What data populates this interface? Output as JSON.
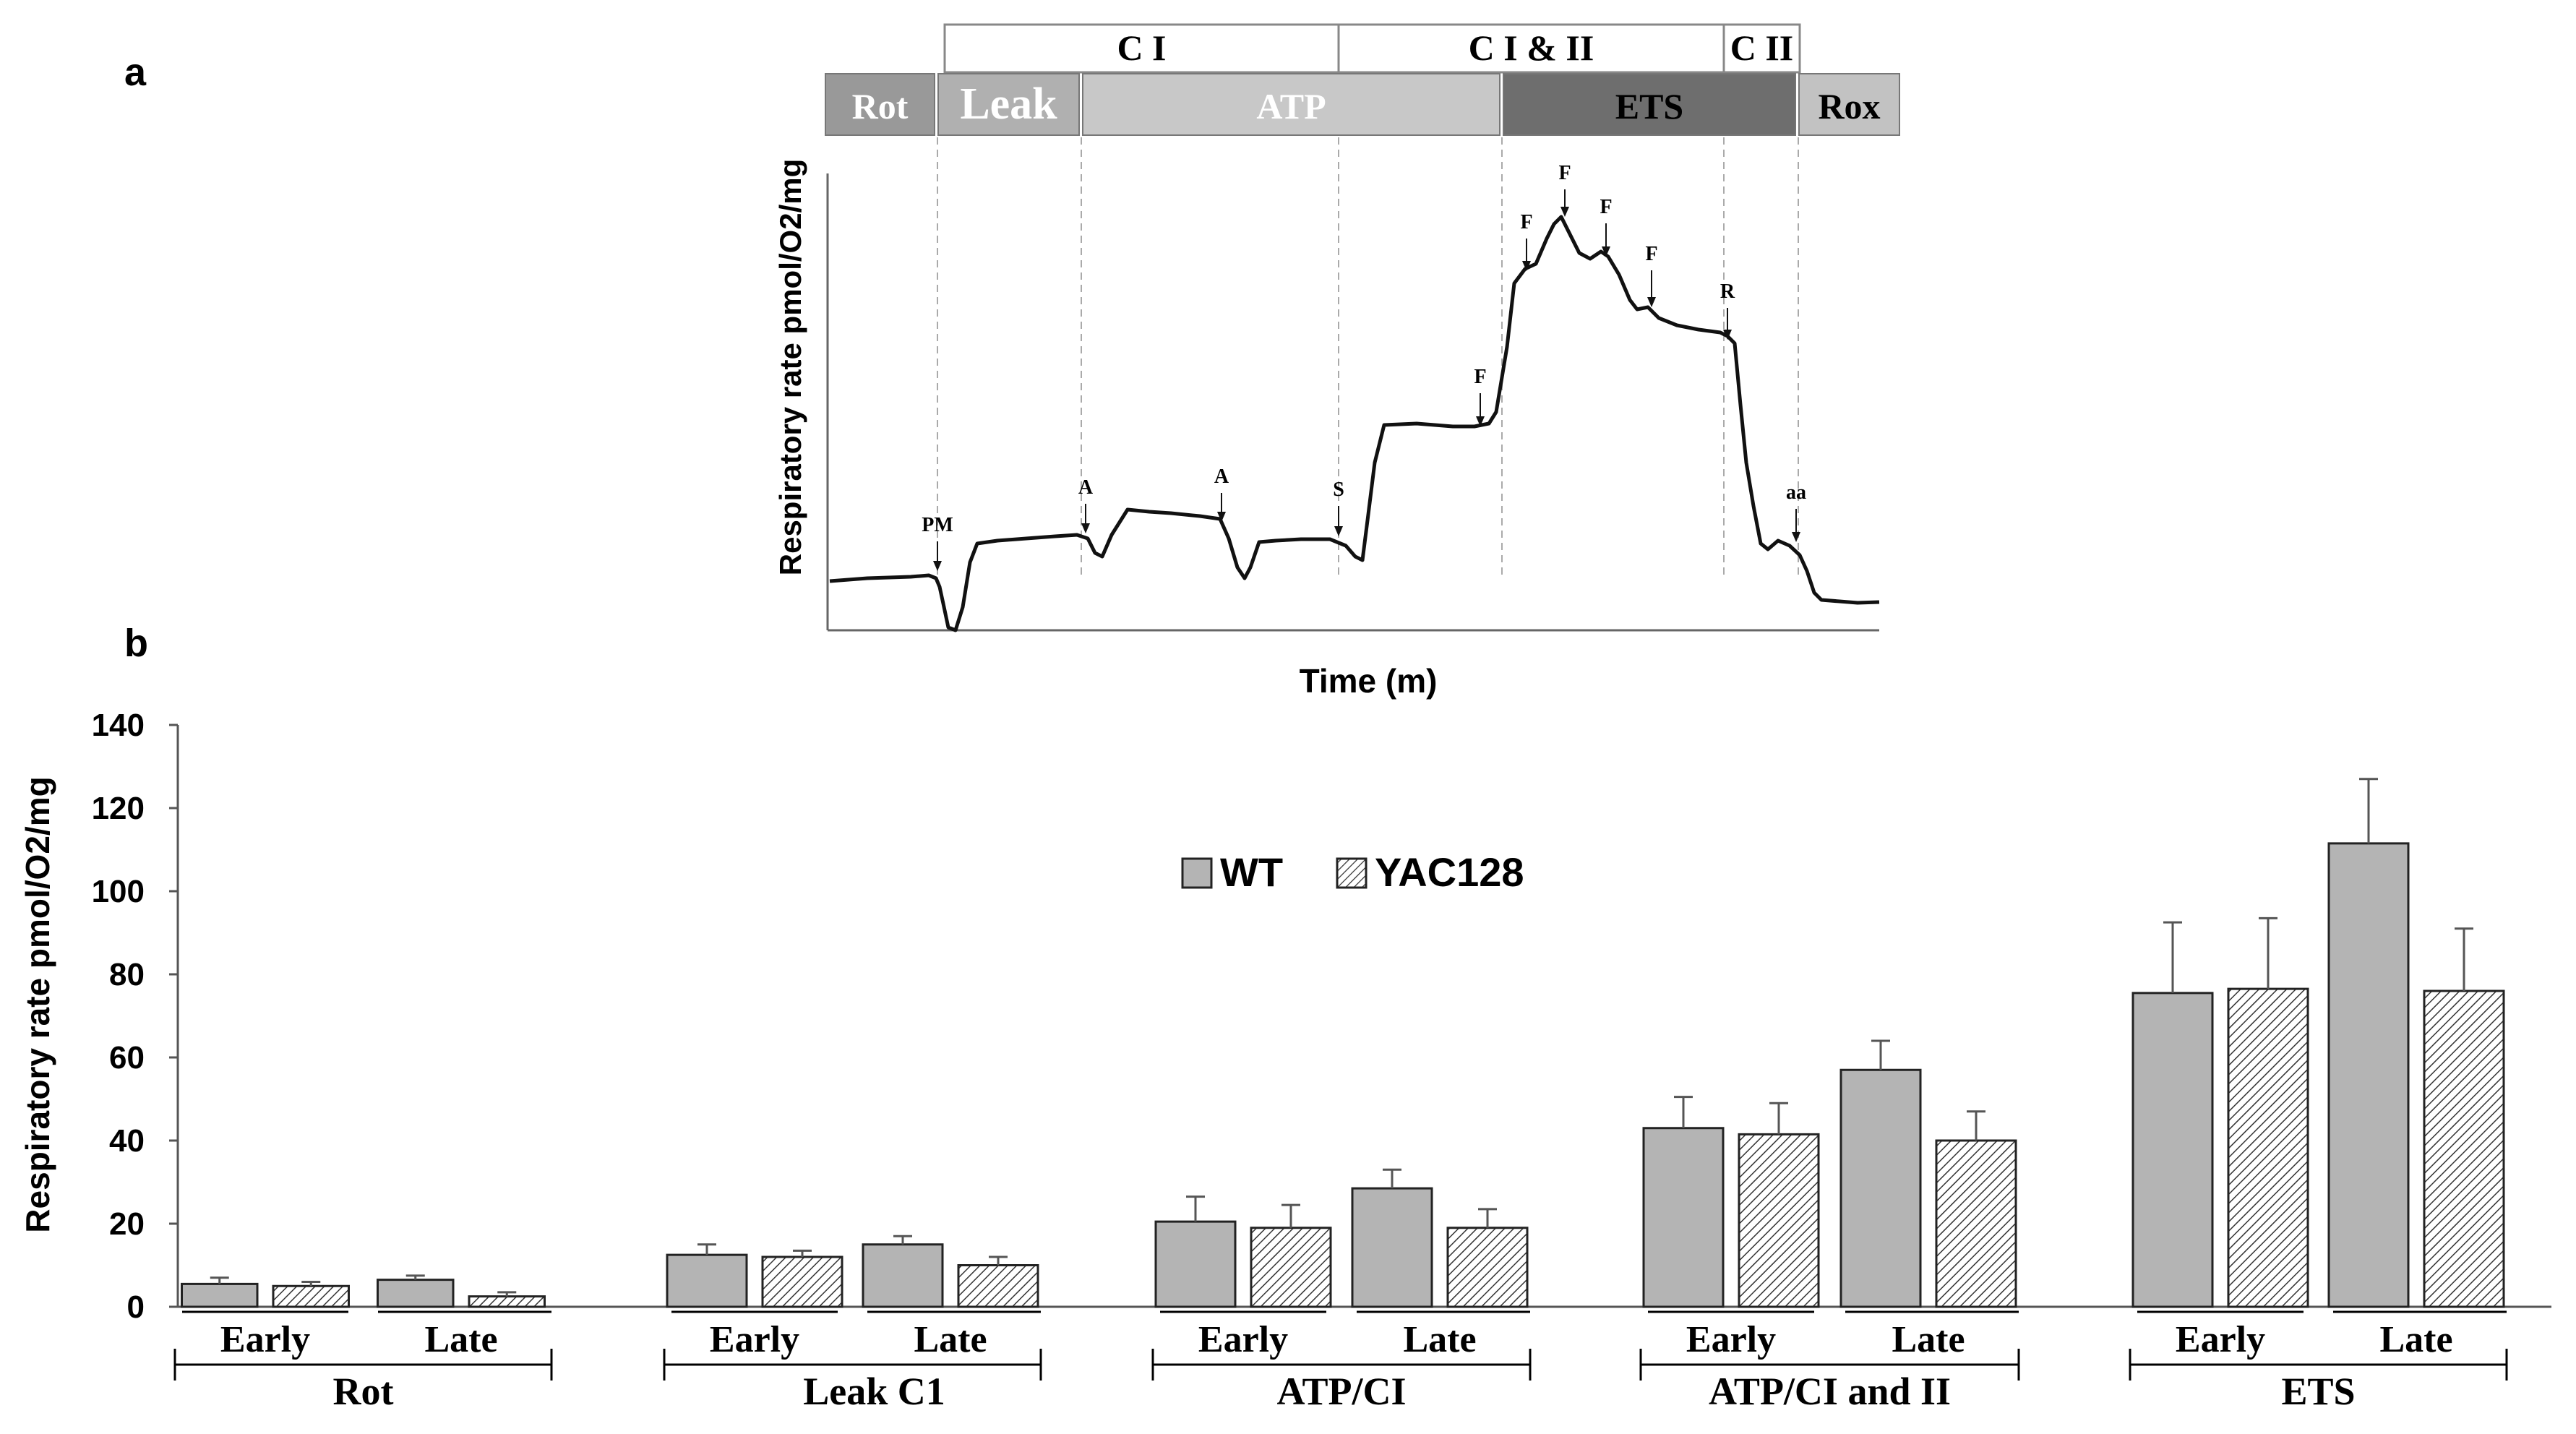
{
  "panel_a_label": "a",
  "panel_b_label": "b",
  "chart_data": [
    {
      "type": "line",
      "name": "oxygraph-trace",
      "title": "",
      "xlabel": "Time (m)",
      "ylabel": "Respiratory rate pmol/O2/mg",
      "complex_labels": [
        "C I",
        "C I & II",
        "C II"
      ],
      "state_labels": [
        "Rot",
        "Leak",
        "ATP",
        "ETS",
        "Rox"
      ],
      "annotations": [
        "PM",
        "A",
        "A",
        "S",
        "F",
        "F",
        "F",
        "F",
        "F",
        "R",
        "aa"
      ]
    },
    {
      "type": "bar",
      "name": "respiratory-rates",
      "ylabel": "Respiratory rate  pmol/O2/mg",
      "ylim": [
        0,
        140
      ],
      "yticks": [
        0,
        20,
        40,
        60,
        80,
        100,
        120,
        140
      ],
      "legend_position": "top-center",
      "groups": [
        "Rot",
        "Leak C1",
        "ATP/CI",
        "ATP/CI and II",
        "ETS"
      ],
      "subgroups": [
        "Early",
        "Late"
      ],
      "series": [
        {
          "name": "WT",
          "pattern": "solid",
          "color": "#b4b4b4",
          "values": [
            5.5,
            6.5,
            12.5,
            15,
            20.5,
            28.5,
            43,
            57,
            75.5,
            111.5
          ],
          "errors": [
            1.5,
            1,
            2.5,
            2,
            6,
            4.5,
            7.5,
            7,
            17,
            15.5
          ]
        },
        {
          "name": "YAC128",
          "pattern": "hatched",
          "color": "#ffffff",
          "values": [
            5,
            2.5,
            12,
            10,
            19,
            19,
            41.5,
            40,
            76.5,
            76
          ],
          "errors": [
            1,
            1,
            1.5,
            2,
            5.5,
            4.5,
            7.5,
            7,
            17,
            15
          ]
        }
      ]
    }
  ]
}
